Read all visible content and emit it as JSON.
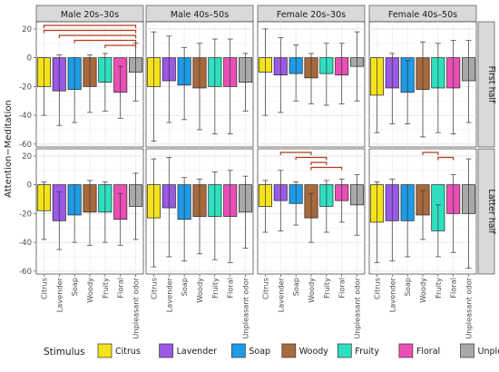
{
  "chart_data": {
    "type": "bar",
    "ylabel": "Attention−Meditation",
    "ylim": [
      -62,
      25
    ],
    "yticks": [
      20,
      0,
      -20,
      -40,
      -60
    ],
    "categories": [
      "Citrus",
      "Lavender",
      "Soap",
      "Woody",
      "Fruity",
      "Floral",
      "Unpleasant odor"
    ],
    "columns": [
      "Male 20s–30s",
      "Male 40s–50s",
      "Female 20s–30s",
      "Female 40s–50s"
    ],
    "rows": [
      "First half",
      "Latter half"
    ],
    "legend": {
      "title": "Stimulus",
      "placement": "bottom"
    },
    "colors": [
      "#f5e31a",
      "#9b59e6",
      "#1e9be6",
      "#a86a3c",
      "#2fe0c0",
      "#ea4fb6",
      "#a9a9a9"
    ],
    "bracket_color": "#b23a1e",
    "panels": [
      {
        "row": 0,
        "col": 0,
        "means": [
          -20,
          -23,
          -22,
          -20,
          -17,
          -24,
          -10
        ],
        "lower": [
          -40,
          -47,
          -45,
          -38,
          -37,
          -42,
          -30
        ],
        "upper": [
          0,
          2,
          0,
          2,
          3,
          -6,
          10
        ],
        "brackets": [
          [
            0,
            6
          ],
          [
            0,
            6
          ],
          [
            1,
            6
          ],
          [
            2,
            6
          ],
          [
            4,
            6
          ]
        ]
      },
      {
        "row": 0,
        "col": 1,
        "means": [
          -20,
          -16,
          -19,
          -21,
          -20,
          -20,
          -17
        ],
        "lower": [
          -58,
          -45,
          -43,
          -50,
          -53,
          -53,
          -37
        ],
        "upper": [
          18,
          15,
          7,
          10,
          13,
          13,
          3
        ],
        "brackets": []
      },
      {
        "row": 0,
        "col": 2,
        "means": [
          -10,
          -12,
          -11,
          -14,
          -11,
          -12,
          -6
        ],
        "lower": [
          -40,
          -38,
          -30,
          -32,
          -33,
          -32,
          -30
        ],
        "upper": [
          20,
          14,
          9,
          3,
          10,
          10,
          18
        ],
        "brackets": []
      },
      {
        "row": 0,
        "col": 3,
        "means": [
          -26,
          -21,
          -24,
          -22,
          -21,
          -21,
          -16
        ],
        "lower": [
          -52,
          -46,
          -46,
          -55,
          -52,
          -53,
          -45
        ],
        "upper": [
          0,
          3,
          -2,
          11,
          10,
          12,
          12
        ],
        "brackets": []
      },
      {
        "row": 1,
        "col": 0,
        "means": [
          -18,
          -25,
          -21,
          -19,
          -19,
          -24,
          -15
        ],
        "lower": [
          -38,
          -45,
          -40,
          -42,
          -40,
          -42,
          -38
        ],
        "upper": [
          2,
          -5,
          0,
          3,
          2,
          -6,
          8
        ],
        "brackets": []
      },
      {
        "row": 1,
        "col": 1,
        "means": [
          -23,
          -16,
          -24,
          -22,
          -22,
          -22,
          -19
        ],
        "lower": [
          -57,
          -50,
          -53,
          -48,
          -52,
          -54,
          -44
        ],
        "upper": [
          18,
          19,
          5,
          4,
          9,
          10,
          6
        ],
        "brackets": []
      },
      {
        "row": 1,
        "col": 2,
        "means": [
          -15,
          -11,
          -13,
          -23,
          -15,
          -11,
          -14
        ],
        "lower": [
          -33,
          -32,
          -28,
          -40,
          -33,
          -26,
          -35
        ],
        "upper": [
          3,
          10,
          2,
          -6,
          3,
          4,
          7
        ],
        "brackets": [
          [
            1,
            3
          ],
          [
            2,
            4
          ],
          [
            3,
            4
          ],
          [
            3,
            5
          ]
        ]
      },
      {
        "row": 1,
        "col": 3,
        "means": [
          -26,
          -25,
          -25,
          -21,
          -32,
          -20,
          -20
        ],
        "lower": [
          -54,
          -53,
          -50,
          -38,
          -50,
          -47,
          -58
        ],
        "upper": [
          2,
          4,
          0,
          -4,
          -14,
          7,
          18
        ],
        "brackets": [
          [
            3,
            4
          ],
          [
            4,
            5
          ]
        ]
      }
    ]
  }
}
